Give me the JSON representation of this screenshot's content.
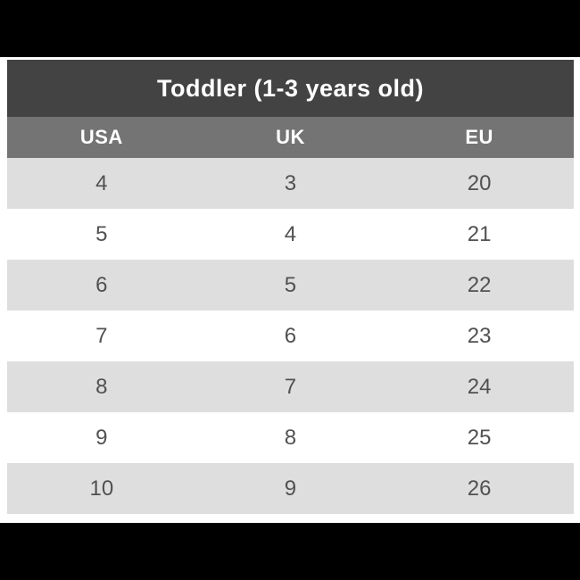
{
  "chart_data": {
    "type": "table",
    "title": "Toddler (1-3 years old)",
    "columns": [
      "USA",
      "UK",
      "EU"
    ],
    "rows": [
      [
        "4",
        "3",
        "20"
      ],
      [
        "5",
        "4",
        "21"
      ],
      [
        "6",
        "5",
        "22"
      ],
      [
        "7",
        "6",
        "23"
      ],
      [
        "8",
        "7",
        "24"
      ],
      [
        "9",
        "8",
        "25"
      ],
      [
        "10",
        "9",
        "26"
      ]
    ]
  },
  "colors": {
    "letterbox": "#000000",
    "title_bar_bg": "#434343",
    "header_row_bg": "#747474",
    "alt_row_bg": "#dedede",
    "row_bg": "#ffffff",
    "title_text": "#ffffff",
    "header_text": "#ffffff",
    "cell_text": "#515151",
    "page_bg": "#ffffff"
  }
}
